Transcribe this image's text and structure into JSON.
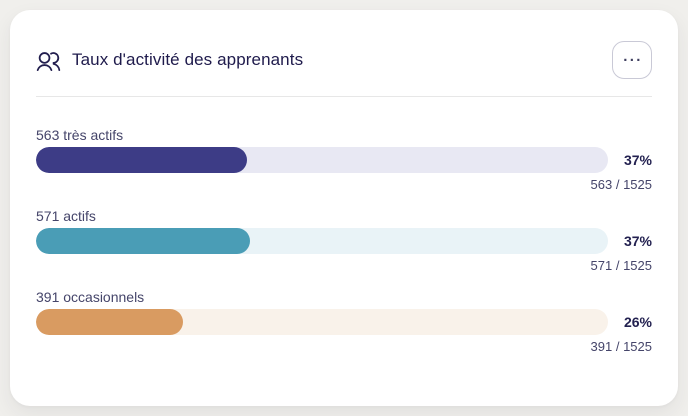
{
  "page": {
    "background": "#f0efec"
  },
  "widget": {
    "title": "Taux d'activité des apprenants",
    "title_icon": "users-icon",
    "menu_glyph": "···",
    "rows": [
      {
        "label": "563 très actifs",
        "value": 563,
        "total": 1525,
        "percent": "37%",
        "fraction": "563 / 1525",
        "fill_color": "#3d3c86",
        "track_color": "#e8e8f3"
      },
      {
        "label": "571 actifs",
        "value": 571,
        "total": 1525,
        "percent": "37%",
        "fraction": "571 / 1525",
        "fill_color": "#4a9db6",
        "track_color": "#e9f3f7"
      },
      {
        "label": "391 occasionnels",
        "value": 391,
        "total": 1525,
        "percent": "26%",
        "fraction": "391 / 1525",
        "fill_color": "#d99b61",
        "track_color": "#f9f2ea"
      }
    ]
  },
  "chart_data": {
    "type": "bar",
    "orientation": "horizontal",
    "title": "Taux d'activité des apprenants",
    "categories": [
      "très actifs",
      "actifs",
      "occasionnels"
    ],
    "values": [
      563,
      571,
      391
    ],
    "total": 1525,
    "percent_labels": [
      "37%",
      "37%",
      "26%"
    ],
    "value_labels": [
      "563 / 1525",
      "571 / 1525",
      "391 / 1525"
    ],
    "xlim": [
      0,
      1525
    ],
    "colors": [
      "#3d3c86",
      "#4a9db6",
      "#d99b61"
    ],
    "track_colors": [
      "#e8e8f3",
      "#e9f3f7",
      "#f9f2ea"
    ],
    "legend": "none",
    "grid": false
  }
}
